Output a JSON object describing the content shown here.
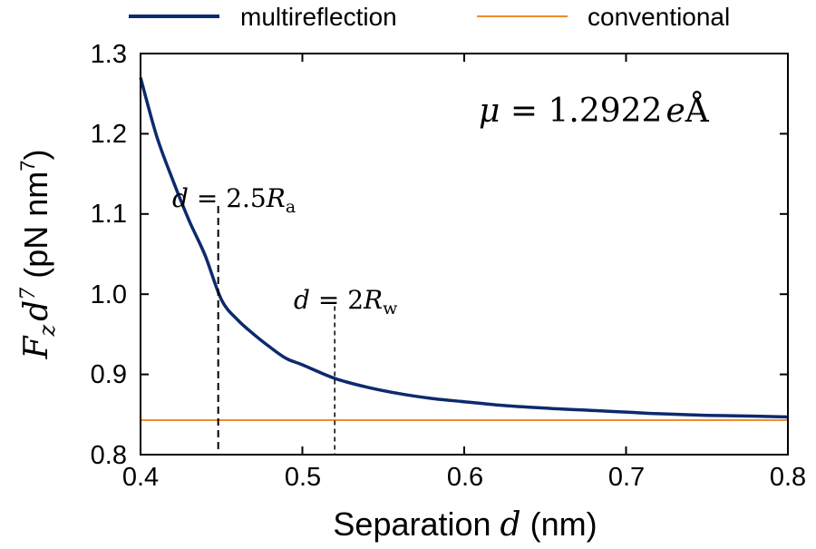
{
  "chart_data": {
    "type": "line",
    "xlim": [
      0.4,
      0.8
    ],
    "ylim": [
      0.8,
      1.3
    ],
    "x_ticks": [
      "0.4",
      "0.5",
      "0.6",
      "0.7",
      "0.8"
    ],
    "y_ticks": [
      "0.8",
      "0.9",
      "1.0",
      "1.1",
      "1.2",
      "1.3"
    ],
    "xlabel": {
      "text": "Separation ",
      "var": "d",
      "unit": " (nm)"
    },
    "ylabel": {
      "var_F": "F",
      "sub_z": "z",
      "var_d": "d",
      "sup": "7",
      "unit": " (pN nm",
      "unit_sup": "7",
      "unit_close": ")"
    },
    "legend_position": "top",
    "series": [
      {
        "name": "multireflection",
        "color": "#0d2a6e",
        "x": [
          0.4,
          0.41,
          0.42,
          0.43,
          0.44,
          0.45,
          0.46,
          0.47,
          0.48,
          0.49,
          0.5,
          0.52,
          0.54,
          0.56,
          0.58,
          0.6,
          0.62,
          0.65,
          0.68,
          0.7,
          0.72,
          0.75,
          0.78,
          0.8
        ],
        "y": [
          1.27,
          1.197,
          1.142,
          1.092,
          1.048,
          0.993,
          0.968,
          0.95,
          0.934,
          0.92,
          0.912,
          0.895,
          0.884,
          0.876,
          0.87,
          0.866,
          0.862,
          0.858,
          0.855,
          0.853,
          0.851,
          0.849,
          0.848,
          0.847
        ]
      },
      {
        "name": "conventional",
        "color": "#f08c2a",
        "x": [
          0.4,
          0.8
        ],
        "y": [
          0.843,
          0.843
        ]
      }
    ],
    "annotations": [
      {
        "id": "mu",
        "lhs": "μ",
        "eq": " = ",
        "value": "1.2922",
        "unit_var": "e",
        "unit": "Å"
      },
      {
        "id": "d25",
        "lhs": "d",
        "eq": " = ",
        "coef": "2.5",
        "var": "R",
        "sub": "a",
        "x": 0.448,
        "y_top": 1.11
      },
      {
        "id": "d2",
        "lhs": "d",
        "eq": " = ",
        "coef": "2",
        "var": "R",
        "sub": "w",
        "x": 0.52,
        "y_top": 0.985
      }
    ]
  }
}
